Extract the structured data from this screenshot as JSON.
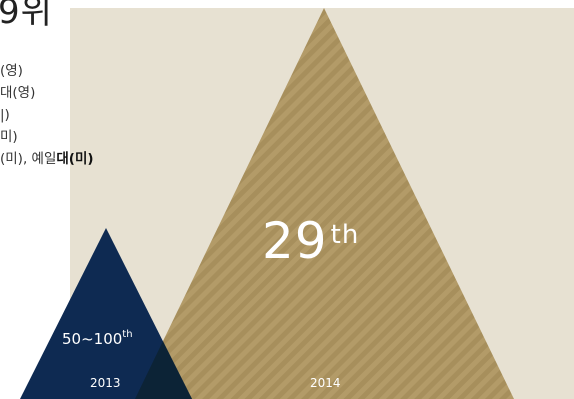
{
  "title_fragment": "9위",
  "list": [
    {
      "text": "(영)",
      "highlight": ""
    },
    {
      "text": "대(영)",
      "highlight": ""
    },
    {
      "text": "|)",
      "highlight": ""
    },
    {
      "text": "미)",
      "highlight": ""
    },
    {
      "text": "(미), 예일",
      "highlight": "대(미)"
    }
  ],
  "ranks": {
    "y2013": {
      "value": "50~100",
      "suffix": "th",
      "year": "2013"
    },
    "y2014": {
      "value": "29",
      "suffix": "th",
      "year": "2014"
    }
  },
  "colors": {
    "background": "#e7e1d2",
    "gold": "#a78f5c",
    "navy": "#0e2a52",
    "overlap": "#0c2336"
  }
}
